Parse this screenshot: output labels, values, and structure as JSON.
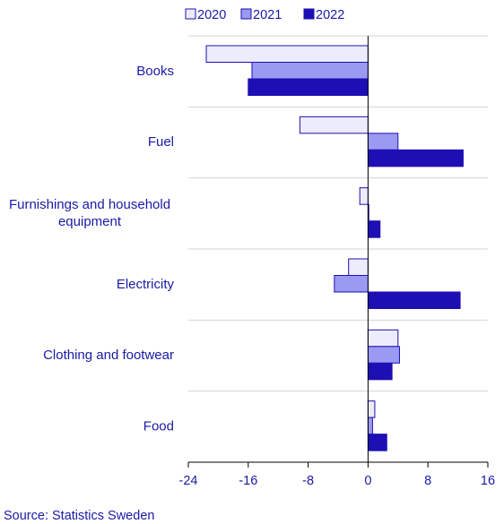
{
  "chart_data": {
    "type": "bar",
    "orientation": "horizontal",
    "categories": [
      "Books",
      "Fuel",
      "Furnishings and household equipment",
      "Electricity",
      "Clothing and footwear",
      "Food"
    ],
    "category_lines": [
      [
        "Books"
      ],
      [
        "Fuel"
      ],
      [
        "Furnishings and household",
        "equipment"
      ],
      [
        "Electricity"
      ],
      [
        "Clothing and footwear"
      ],
      [
        "Food"
      ]
    ],
    "series": [
      {
        "name": "2020",
        "color": "#ececfb",
        "values": [
          -21.6,
          -9.1,
          -1.1,
          -2.6,
          4.0,
          0.9
        ]
      },
      {
        "name": "2021",
        "color": "#9a9af2",
        "values": [
          -15.5,
          4.0,
          0.1,
          -4.5,
          4.2,
          0.6
        ]
      },
      {
        "name": "2022",
        "color": "#1e0fb4",
        "values": [
          -16.0,
          12.7,
          1.6,
          12.3,
          3.2,
          2.5
        ]
      }
    ],
    "xlim": [
      -24,
      16
    ],
    "xticks": [
      "-24",
      "-16",
      "-8",
      "0",
      "8",
      "16"
    ],
    "grid": "horizontal category separators",
    "legend": "top"
  },
  "source": "Source: Statistics Sweden"
}
